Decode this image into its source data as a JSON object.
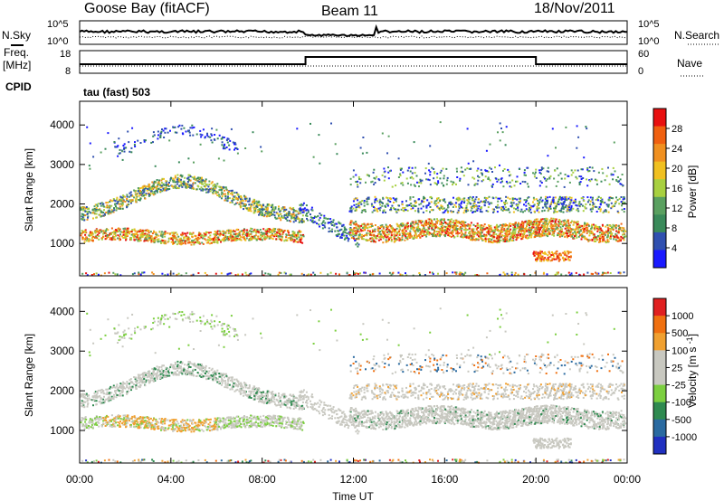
{
  "header": {
    "station": "Goose Bay (fitACF)",
    "beam": "Beam 11",
    "date": "18/Nov/2011"
  },
  "top_panels": {
    "nsky_label": "N.Sky",
    "nsearch_label": "N.Search",
    "noise_ticks_left": [
      "10^5",
      "10^0"
    ],
    "noise_ticks_right": [
      "10^5",
      "10^0"
    ],
    "freq_label_1": "Freq.",
    "freq_label_2": "[MHz]",
    "freq_ticks": [
      "18",
      "8"
    ],
    "nave_label": "Nave",
    "nave_ticks": [
      "60",
      "0"
    ],
    "cpid_label": "CPID",
    "cpid_text": "tau (fast) 503"
  },
  "colors": {
    "power_scale": [
      "#1a1aff",
      "#3050b0",
      "#3a8a5a",
      "#5aa060",
      "#a8d040",
      "#f0c020",
      "#f09020",
      "#f06010",
      "#e81010"
    ],
    "velocity_scale": [
      "#2030c0",
      "#2a6aa0",
      "#2f8a50",
      "#7ccf40",
      "#c8c8c0",
      "#c8c8c0",
      "#f0a030",
      "#f07010",
      "#e02020"
    ]
  },
  "chart_data": [
    {
      "type": "heatmap",
      "name": "power",
      "xlabel": "",
      "ylabel": "Slant Range [km]",
      "xlim": [
        0,
        24
      ],
      "ylim": [
        180,
        4600
      ],
      "yticks": [
        1000,
        2000,
        3000,
        4000
      ],
      "colorbar_label": "Power [dB]",
      "colorbar_ticks": [
        "28",
        "24",
        "20",
        "16",
        "12",
        "8",
        "4"
      ]
    },
    {
      "type": "heatmap",
      "name": "velocity",
      "xlabel": "Time UT",
      "ylabel": "Slant Range [km]",
      "xlim": [
        0,
        24
      ],
      "ylim": [
        180,
        4600
      ],
      "yticks": [
        1000,
        2000,
        3000,
        4000
      ],
      "xticks": [
        "00:00",
        "04:00",
        "08:00",
        "12:00",
        "16:00",
        "20:00",
        "00:00"
      ],
      "colorbar_label": "Velocity [m s^-1]",
      "colorbar_ticks": [
        "1000",
        "500",
        "100",
        "25",
        "-25",
        "-100",
        "-500",
        "-1000"
      ]
    }
  ]
}
